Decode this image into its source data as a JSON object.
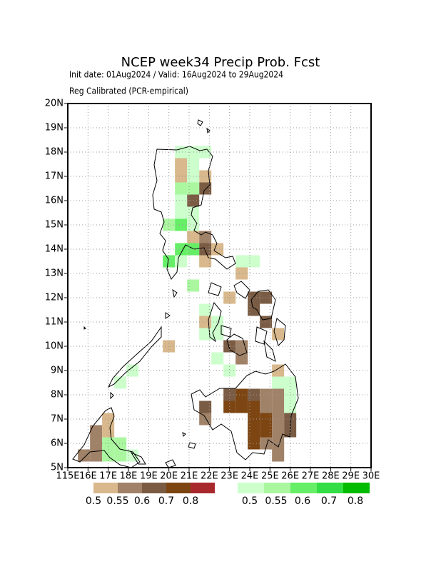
{
  "chart_data": {
    "type": "map",
    "title": "NCEP week34 Precip Prob. Fcst",
    "subtitle": "Init date: 01Aug2024 / Valid: 16Aug2024 to 29Aug2024",
    "note": "Reg Calibrated (PCR-empirical)",
    "xlim": [
      115,
      130
    ],
    "ylim": [
      5,
      20
    ],
    "xticks": [
      {
        "value": 115,
        "label": "115E"
      },
      {
        "value": 116,
        "label": "16E"
      },
      {
        "value": 117,
        "label": "17E"
      },
      {
        "value": 118,
        "label": "18E"
      },
      {
        "value": 119,
        "label": "19E"
      },
      {
        "value": 120,
        "label": "20E"
      },
      {
        "value": 121,
        "label": "21E"
      },
      {
        "value": 122,
        "label": "22E"
      },
      {
        "value": 123,
        "label": "23E"
      },
      {
        "value": 124,
        "label": "24E"
      },
      {
        "value": 125,
        "label": "25E"
      },
      {
        "value": 126,
        "label": "26E"
      },
      {
        "value": 127,
        "label": "27E"
      },
      {
        "value": 128,
        "label": "28E"
      },
      {
        "value": 129,
        "label": "29E"
      },
      {
        "value": 130,
        "label": "30E"
      }
    ],
    "yticks": [
      {
        "value": 5,
        "label": "5N"
      },
      {
        "value": 6,
        "label": "6N"
      },
      {
        "value": 7,
        "label": "7N"
      },
      {
        "value": 8,
        "label": "8N"
      },
      {
        "value": 9,
        "label": "9N"
      },
      {
        "value": 10,
        "label": "10N"
      },
      {
        "value": 11,
        "label": "11N"
      },
      {
        "value": 12,
        "label": "12N"
      },
      {
        "value": 13,
        "label": "13N"
      },
      {
        "value": 14,
        "label": "14N"
      },
      {
        "value": 15,
        "label": "15N"
      },
      {
        "value": 16,
        "label": "16N"
      },
      {
        "value": 17,
        "label": "17N"
      },
      {
        "value": 18,
        "label": "18N"
      },
      {
        "value": 19,
        "label": "19N"
      },
      {
        "value": 20,
        "label": "20N"
      }
    ],
    "grid": true,
    "scales": [
      {
        "colors": [
          "#d8b88c",
          "#a08268",
          "#7a5c44",
          "#7d4512",
          "#a8282c"
        ],
        "labels": [
          0.5,
          0.55,
          0.6,
          0.7,
          0.8
        ],
        "cells": [
          [
            120.6,
            17.5,
            0.5
          ],
          [
            120.6,
            17.0,
            0.5
          ],
          [
            121.8,
            17.0,
            0.5
          ],
          [
            121.8,
            16.5,
            0.6
          ],
          [
            121.2,
            16.0,
            0.6
          ],
          [
            121.2,
            14.5,
            0.5
          ],
          [
            121.8,
            14.5,
            0.55
          ],
          [
            121.8,
            14.0,
            0.6
          ],
          [
            122.4,
            14.0,
            0.5
          ],
          [
            121.8,
            13.5,
            0.5
          ],
          [
            123.6,
            13.0,
            0.5
          ],
          [
            123.0,
            12.0,
            0.5
          ],
          [
            124.2,
            12.0,
            0.6
          ],
          [
            124.8,
            12.0,
            0.6
          ],
          [
            124.2,
            11.5,
            0.6
          ],
          [
            124.8,
            11.0,
            0.6
          ],
          [
            125.4,
            10.5,
            0.5
          ],
          [
            121.8,
            11.0,
            0.5
          ],
          [
            123.0,
            10.0,
            0.6
          ],
          [
            123.6,
            10.0,
            0.55
          ],
          [
            123.6,
            9.5,
            0.55
          ],
          [
            120.0,
            10.0,
            0.5
          ],
          [
            125.4,
            9.0,
            0.5
          ],
          [
            123.0,
            8.0,
            0.6
          ],
          [
            123.6,
            8.0,
            0.7
          ],
          [
            123.0,
            7.5,
            0.7
          ],
          [
            123.6,
            7.5,
            0.7
          ],
          [
            124.2,
            8.0,
            0.6
          ],
          [
            124.2,
            7.5,
            0.7
          ],
          [
            124.8,
            8.0,
            0.55
          ],
          [
            125.4,
            8.0,
            0.55
          ],
          [
            124.8,
            7.5,
            0.55
          ],
          [
            125.4,
            7.5,
            0.55
          ],
          [
            124.2,
            7.0,
            0.7
          ],
          [
            124.8,
            7.0,
            0.7
          ],
          [
            125.4,
            7.0,
            0.55
          ],
          [
            124.2,
            6.5,
            0.7
          ],
          [
            124.8,
            6.5,
            0.7
          ],
          [
            125.4,
            6.5,
            0.55
          ],
          [
            124.2,
            6.0,
            0.7
          ],
          [
            124.8,
            6.0,
            0.55
          ],
          [
            125.4,
            6.0,
            0.55
          ],
          [
            125.4,
            5.5,
            0.55
          ],
          [
            126.0,
            7.0,
            0.6
          ],
          [
            126.0,
            6.5,
            0.6
          ],
          [
            121.8,
            7.5,
            0.6
          ],
          [
            121.8,
            7.0,
            0.55
          ],
          [
            117.0,
            7.0,
            0.5
          ],
          [
            116.4,
            6.5,
            0.55
          ],
          [
            117.0,
            6.5,
            0.5
          ],
          [
            116.4,
            6.0,
            0.55
          ],
          [
            115.8,
            5.5,
            0.55
          ],
          [
            116.4,
            5.5,
            0.55
          ]
        ]
      },
      {
        "colors": [
          "#ccffcc",
          "#aaf7a0",
          "#66ee66",
          "#33dd44",
          "#00bb00"
        ],
        "labels": [
          0.5,
          0.55,
          0.6,
          0.7,
          0.8
        ],
        "cells": [
          [
            121.2,
            18.0,
            0.5
          ],
          [
            121.8,
            18.0,
            0.5
          ],
          [
            120.6,
            18.0,
            0.5
          ],
          [
            121.2,
            17.5,
            0.5
          ],
          [
            121.2,
            17.0,
            0.5
          ],
          [
            120.6,
            16.5,
            0.55
          ],
          [
            121.2,
            16.5,
            0.55
          ],
          [
            120.6,
            16.0,
            0.5
          ],
          [
            120.6,
            15.5,
            0.5
          ],
          [
            121.2,
            15.5,
            0.5
          ],
          [
            120.0,
            15.0,
            0.55
          ],
          [
            120.6,
            15.0,
            0.6
          ],
          [
            121.2,
            15.0,
            0.5
          ],
          [
            120.6,
            14.0,
            0.6
          ],
          [
            121.2,
            14.0,
            0.6
          ],
          [
            120.0,
            13.5,
            0.6
          ],
          [
            120.6,
            13.5,
            0.5
          ],
          [
            121.2,
            12.5,
            0.55
          ],
          [
            123.6,
            13.5,
            0.5
          ],
          [
            124.2,
            13.5,
            0.5
          ],
          [
            121.8,
            11.5,
            0.5
          ],
          [
            122.4,
            11.0,
            0.5
          ],
          [
            122.4,
            10.5,
            0.5
          ],
          [
            121.8,
            10.5,
            0.5
          ],
          [
            122.4,
            9.5,
            0.5
          ],
          [
            123.0,
            9.0,
            0.5
          ],
          [
            125.4,
            8.5,
            0.5
          ],
          [
            126.0,
            8.5,
            0.5
          ],
          [
            126.0,
            8.0,
            0.5
          ],
          [
            126.0,
            7.5,
            0.5
          ],
          [
            117.6,
            8.5,
            0.5
          ],
          [
            118.2,
            9.0,
            0.5
          ],
          [
            117.0,
            6.0,
            0.55
          ],
          [
            117.6,
            6.0,
            0.55
          ],
          [
            117.0,
            5.5,
            0.55
          ],
          [
            117.6,
            5.5,
            0.55
          ],
          [
            118.2,
            5.5,
            0.5
          ]
        ]
      }
    ]
  }
}
